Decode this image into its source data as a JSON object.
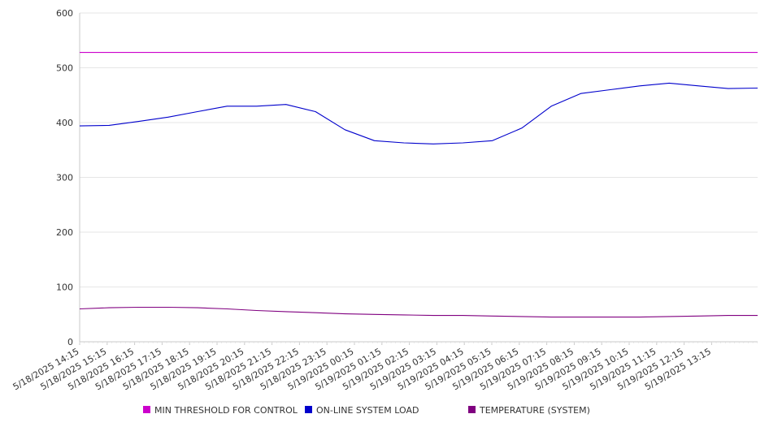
{
  "chart_data": {
    "type": "line",
    "title": "",
    "xlabel": "",
    "ylabel": "",
    "ylim": [
      0,
      600
    ],
    "y_ticks": [
      0,
      100,
      200,
      300,
      400,
      500,
      600
    ],
    "grid": true,
    "legend_position": "bottom",
    "x_ticks": [
      "5/18/2025 14:15",
      "5/18/2025 15:15",
      "5/18/2025 16:15",
      "5/18/2025 17:15",
      "5/18/2025 18:15",
      "5/18/2025 19:15",
      "5/18/2025 20:15",
      "5/18/2025 21:15",
      "5/18/2025 22:15",
      "5/18/2025 23:15",
      "5/19/2025 00:15",
      "5/19/2025 01:15",
      "5/19/2025 02:15",
      "5/19/2025 03:15",
      "5/19/2025 04:15",
      "5/19/2025 05:15",
      "5/19/2025 06:15",
      "5/19/2025 07:15",
      "5/19/2025 08:15",
      "5/19/2025 09:15",
      "5/19/2025 10:15",
      "5/19/2025 11:15",
      "5/19/2025 12:15",
      "5/19/2025 13:15"
    ],
    "series": [
      {
        "name": "MIN THRESHOLD FOR CONTROL",
        "color": "#cc00cc",
        "values": [
          528,
          528,
          528,
          528,
          528,
          528,
          528,
          528,
          528,
          528,
          528,
          528,
          528,
          528,
          528,
          528,
          528,
          528,
          528,
          528,
          528,
          528,
          528,
          528
        ]
      },
      {
        "name": "ON-LINE SYSTEM LOAD",
        "color": "#0000cc",
        "values": [
          394,
          395,
          402,
          410,
          420,
          430,
          430,
          433,
          420,
          387,
          367,
          363,
          361,
          363,
          367,
          390,
          430,
          453,
          460,
          467,
          472,
          467,
          462,
          463
        ]
      },
      {
        "name": "TEMPERATURE (SYSTEM)",
        "color": "#800080",
        "values": [
          60,
          62,
          63,
          63,
          62,
          60,
          57,
          55,
          53,
          51,
          50,
          49,
          48,
          48,
          47,
          46,
          45,
          45,
          45,
          45,
          46,
          47,
          48,
          48
        ]
      }
    ]
  }
}
